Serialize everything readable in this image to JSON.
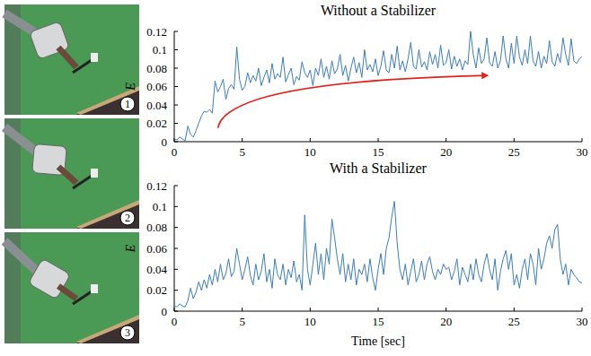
{
  "photos": {
    "labels": [
      "1",
      "2",
      "3"
    ]
  },
  "chart_data": [
    {
      "type": "line",
      "title": "Without a Stabilizer",
      "ylabel": "E",
      "color": "#3a7dc0",
      "grid": false,
      "xlim": [
        0,
        30
      ],
      "xticks": [
        0,
        5,
        10,
        15,
        20,
        25,
        30
      ],
      "ylim": [
        0,
        0.12
      ],
      "yticks": [
        0,
        0.02,
        0.04,
        0.06,
        0.08,
        0.1,
        0.12
      ],
      "x": [
        0,
        0.2,
        0.4,
        0.6,
        0.8,
        1,
        1.2,
        1.4,
        1.6,
        1.8,
        2,
        2.2,
        2.4,
        2.6,
        2.8,
        3,
        3.2,
        3.4,
        3.6,
        3.8,
        4,
        4.2,
        4.4,
        4.6,
        4.8,
        5,
        5.2,
        5.4,
        5.6,
        5.8,
        6,
        6.2,
        6.4,
        6.6,
        6.8,
        7,
        7.2,
        7.4,
        7.6,
        7.8,
        8,
        8.2,
        8.4,
        8.6,
        8.8,
        9,
        9.2,
        9.4,
        9.6,
        9.8,
        10,
        10.2,
        10.4,
        10.6,
        10.8,
        11,
        11.2,
        11.4,
        11.6,
        11.8,
        12,
        12.2,
        12.4,
        12.6,
        12.8,
        13,
        13.2,
        13.4,
        13.6,
        13.8,
        14,
        14.2,
        14.4,
        14.6,
        14.8,
        15,
        15.2,
        15.4,
        15.6,
        15.8,
        16,
        16.2,
        16.4,
        16.6,
        16.8,
        17,
        17.2,
        17.4,
        17.6,
        17.8,
        18,
        18.2,
        18.4,
        18.6,
        18.8,
        19,
        19.2,
        19.4,
        19.6,
        19.8,
        20,
        20.2,
        20.4,
        20.6,
        20.8,
        21,
        21.2,
        21.4,
        21.6,
        21.8,
        22,
        22.2,
        22.4,
        22.6,
        22.8,
        23,
        23.2,
        23.4,
        23.6,
        23.8,
        24,
        24.2,
        24.4,
        24.6,
        24.8,
        25,
        25.2,
        25.4,
        25.6,
        25.8,
        26,
        26.2,
        26.4,
        26.6,
        26.8,
        27,
        27.2,
        27.4,
        27.6,
        27.8,
        28,
        28.2,
        28.4,
        28.6,
        28.8,
        29,
        29.2,
        29.4,
        29.6,
        29.8,
        30
      ],
      "series": [
        {
          "color": "#3a7dc0",
          "values": [
            0.003,
            0.002,
            0.005,
            0.003,
            0.001,
            0.017,
            0.008,
            0.005,
            0.012,
            0.02,
            0.028,
            0.033,
            0.032,
            0.035,
            0.031,
            0.066,
            0.054,
            0.06,
            0.068,
            0.046,
            0.058,
            0.062,
            0.057,
            0.103,
            0.068,
            0.056,
            0.06,
            0.075,
            0.064,
            0.072,
            0.066,
            0.08,
            0.061,
            0.07,
            0.078,
            0.064,
            0.085,
            0.068,
            0.074,
            0.07,
            0.092,
            0.065,
            0.073,
            0.08,
            0.062,
            0.071,
            0.067,
            0.087,
            0.075,
            0.07,
            0.078,
            0.061,
            0.08,
            0.072,
            0.09,
            0.07,
            0.082,
            0.068,
            0.088,
            0.074,
            0.079,
            0.095,
            0.072,
            0.083,
            0.066,
            0.08,
            0.092,
            0.075,
            0.086,
            0.07,
            0.1,
            0.078,
            0.084,
            0.076,
            0.09,
            0.072,
            0.082,
            0.099,
            0.078,
            0.075,
            0.095,
            0.08,
            0.104,
            0.078,
            0.088,
            0.076,
            0.09,
            0.108,
            0.082,
            0.079,
            0.1,
            0.081,
            0.087,
            0.078,
            0.098,
            0.084,
            0.095,
            0.08,
            0.105,
            0.083,
            0.086,
            0.1,
            0.079,
            0.093,
            0.082,
            0.09,
            0.078,
            0.088,
            0.084,
            0.12,
            0.095,
            0.08,
            0.102,
            0.085,
            0.09,
            0.113,
            0.086,
            0.082,
            0.098,
            0.08,
            0.088,
            0.115,
            0.09,
            0.08,
            0.107,
            0.085,
            0.115,
            0.092,
            0.083,
            0.1,
            0.085,
            0.115,
            0.088,
            0.082,
            0.098,
            0.08,
            0.093,
            0.085,
            0.11,
            0.087,
            0.082,
            0.096,
            0.086,
            0.113,
            0.095,
            0.083,
            0.112,
            0.088,
            0.085,
            0.09,
            0.093
          ]
        }
      ]
    },
    {
      "type": "line",
      "title": "With a Stabilizer",
      "xlabel": "Time [sec]",
      "ylabel": "E",
      "color": "#3a7dc0",
      "grid": false,
      "xlim": [
        0,
        30
      ],
      "xticks": [
        0,
        5,
        10,
        15,
        20,
        25,
        30
      ],
      "ylim": [
        0,
        0.12
      ],
      "yticks": [
        0,
        0.02,
        0.04,
        0.06,
        0.08,
        0.1,
        0.12
      ],
      "x": [
        0,
        0.2,
        0.4,
        0.6,
        0.8,
        1,
        1.2,
        1.4,
        1.6,
        1.8,
        2,
        2.2,
        2.4,
        2.6,
        2.8,
        3,
        3.2,
        3.4,
        3.6,
        3.8,
        4,
        4.2,
        4.4,
        4.6,
        4.8,
        5,
        5.2,
        5.4,
        5.6,
        5.8,
        6,
        6.2,
        6.4,
        6.6,
        6.8,
        7,
        7.2,
        7.4,
        7.6,
        7.8,
        8,
        8.2,
        8.4,
        8.6,
        8.8,
        9,
        9.2,
        9.4,
        9.6,
        9.8,
        10,
        10.2,
        10.4,
        10.6,
        10.8,
        11,
        11.2,
        11.4,
        11.6,
        11.8,
        12,
        12.2,
        12.4,
        12.6,
        12.8,
        13,
        13.2,
        13.4,
        13.6,
        13.8,
        14,
        14.2,
        14.4,
        14.6,
        14.8,
        15,
        15.2,
        15.4,
        15.6,
        15.8,
        16,
        16.2,
        16.4,
        16.6,
        16.8,
        17,
        17.2,
        17.4,
        17.6,
        17.8,
        18,
        18.2,
        18.4,
        18.6,
        18.8,
        19,
        19.2,
        19.4,
        19.6,
        19.8,
        20,
        20.2,
        20.4,
        20.6,
        20.8,
        21,
        21.2,
        21.4,
        21.6,
        21.8,
        22,
        22.2,
        22.4,
        22.6,
        22.8,
        23,
        23.2,
        23.4,
        23.6,
        23.8,
        24,
        24.2,
        24.4,
        24.6,
        24.8,
        25,
        25.2,
        25.4,
        25.6,
        25.8,
        26,
        26.2,
        26.4,
        26.6,
        26.8,
        27,
        27.2,
        27.4,
        27.6,
        27.8,
        28,
        28.2,
        28.4,
        28.6,
        28.8,
        29,
        29.2,
        29.4,
        29.6,
        29.8,
        30
      ],
      "series": [
        {
          "color": "#3a7dc0",
          "values": [
            0.005,
            0.004,
            0.007,
            0.005,
            0.004,
            0.01,
            0.022,
            0.012,
            0.018,
            0.028,
            0.02,
            0.03,
            0.022,
            0.035,
            0.025,
            0.04,
            0.028,
            0.045,
            0.03,
            0.036,
            0.05,
            0.033,
            0.038,
            0.06,
            0.045,
            0.03,
            0.04,
            0.052,
            0.034,
            0.025,
            0.045,
            0.03,
            0.038,
            0.055,
            0.028,
            0.04,
            0.022,
            0.05,
            0.035,
            0.03,
            0.045,
            0.025,
            0.04,
            0.032,
            0.048,
            0.028,
            0.035,
            0.02,
            0.092,
            0.04,
            0.025,
            0.045,
            0.065,
            0.035,
            0.055,
            0.03,
            0.06,
            0.045,
            0.088,
            0.07,
            0.05,
            0.035,
            0.055,
            0.028,
            0.045,
            0.03,
            0.05,
            0.025,
            0.04,
            0.035,
            0.045,
            0.028,
            0.05,
            0.032,
            0.02,
            0.04,
            0.055,
            0.035,
            0.06,
            0.07,
            0.09,
            0.105,
            0.065,
            0.04,
            0.03,
            0.045,
            0.025,
            0.038,
            0.05,
            0.028,
            0.035,
            0.048,
            0.03,
            0.045,
            0.052,
            0.038,
            0.03,
            0.04,
            0.035,
            0.045,
            0.04,
            0.042,
            0.03,
            0.038,
            0.05,
            0.025,
            0.042,
            0.035,
            0.028,
            0.045,
            0.03,
            0.05,
            0.035,
            0.028,
            0.045,
            0.055,
            0.04,
            0.03,
            0.05,
            0.02,
            0.038,
            0.05,
            0.058,
            0.04,
            0.055,
            0.025,
            0.035,
            0.022,
            0.04,
            0.05,
            0.03,
            0.055,
            0.045,
            0.025,
            0.06,
            0.04,
            0.05,
            0.065,
            0.072,
            0.06,
            0.078,
            0.083,
            0.05,
            0.035,
            0.045,
            0.025,
            0.04,
            0.035,
            0.032,
            0.028,
            0.027
          ]
        }
      ]
    }
  ]
}
